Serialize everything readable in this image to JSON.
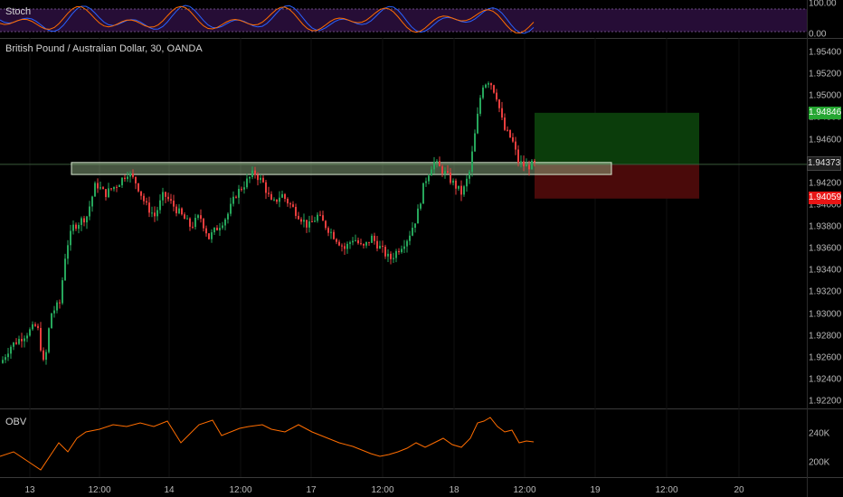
{
  "symbol_title": "British Pound / Australian Dollar, 30, OANDA",
  "stoch_pane": {
    "label": "Stoch",
    "ticks": [
      "100.00",
      "0.00"
    ],
    "overbought": 80,
    "oversold": 20
  },
  "price_axis": {
    "ticks": [
      "1.95400",
      "1.95200",
      "1.95000",
      "1.94800",
      "1.94600",
      "1.94400",
      "1.94200",
      "1.94000",
      "1.93800",
      "1.93600",
      "1.93400",
      "1.93200",
      "1.93000",
      "1.92800",
      "1.92600",
      "1.92400",
      "1.92200"
    ],
    "current_price": "1.94373",
    "target_price": "1.94846",
    "stop_price": "1.94059",
    "colors": {
      "current": "#1e1e1e",
      "target": "#26a632",
      "stop": "#e81515"
    }
  },
  "obv_pane": {
    "label": "OBV",
    "ticks": [
      "240K",
      "200K"
    ],
    "line_color": "#ff6d00"
  },
  "time_axis": {
    "labels": [
      "13",
      "12:00",
      "14",
      "12:00",
      "17",
      "12:00",
      "18",
      "12:00",
      "19",
      "12:00",
      "20"
    ]
  },
  "colors": {
    "up_candle": "#26a65b",
    "down_candle": "#e83e3e",
    "zone_fill": "#9bbc8d",
    "target_zone": "#0b3d0b",
    "stop_zone": "#4a0a0a",
    "stoch_bg": "#2a0e3c"
  }
}
